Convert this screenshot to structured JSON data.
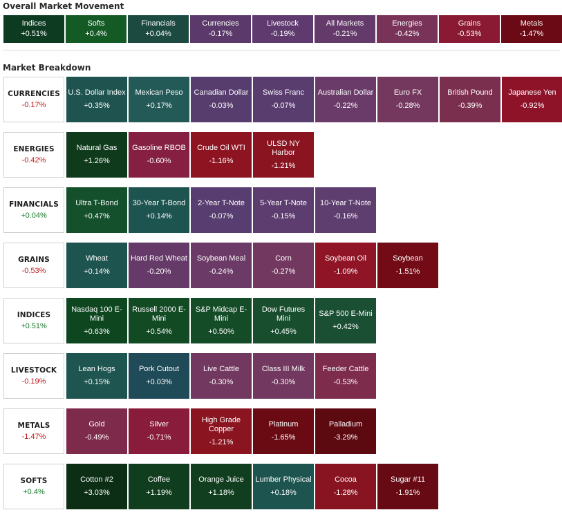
{
  "overall": {
    "title": "Overall Market Movement",
    "tiles": [
      {
        "name": "Indices",
        "change": "+0.51%",
        "color": "#0d3b22"
      },
      {
        "name": "Softs",
        "change": "+0.4%",
        "color": "#145a24"
      },
      {
        "name": "Financials",
        "change": "+0.04%",
        "color": "#1c4a40"
      },
      {
        "name": "Currencies",
        "change": "-0.17%",
        "color": "#5b3a6b"
      },
      {
        "name": "Livestock",
        "change": "-0.19%",
        "color": "#5e3a6e"
      },
      {
        "name": "All Markets",
        "change": "-0.21%",
        "color": "#633a6a"
      },
      {
        "name": "Energies",
        "change": "-0.42%",
        "color": "#7a3358"
      },
      {
        "name": "Grains",
        "change": "-0.53%",
        "color": "#8a1a33"
      },
      {
        "name": "Metals",
        "change": "-1.47%",
        "color": "#6b0a14"
      }
    ]
  },
  "breakdown": {
    "title": "Market Breakdown",
    "rows": [
      {
        "category": "CURRENCIES",
        "change": "-0.17%",
        "sign": "neg",
        "tiles": [
          {
            "name": "U.S. Dollar Index",
            "change": "+0.35%",
            "color": "#1e5350"
          },
          {
            "name": "Mexican Peso",
            "change": "+0.17%",
            "color": "#235a58"
          },
          {
            "name": "Canadian Dollar",
            "change": "-0.03%",
            "color": "#573c6e"
          },
          {
            "name": "Swiss Franc",
            "change": "-0.07%",
            "color": "#5a3d6f"
          },
          {
            "name": "Australian Dollar",
            "change": "-0.22%",
            "color": "#6a3a68"
          },
          {
            "name": "Euro FX",
            "change": "-0.28%",
            "color": "#74385f"
          },
          {
            "name": "British Pound",
            "change": "-0.39%",
            "color": "#7b2f4e"
          },
          {
            "name": "Japanese Yen",
            "change": "-0.92%",
            "color": "#8e1329"
          }
        ]
      },
      {
        "category": "ENERGIES",
        "change": "-0.42%",
        "sign": "neg",
        "tiles": [
          {
            "name": "Natural Gas",
            "change": "+1.26%",
            "color": "#103a1c"
          },
          {
            "name": "Gasoline RBOB",
            "change": "-0.60%",
            "color": "#852043"
          },
          {
            "name": "Crude Oil WTI",
            "change": "-1.16%",
            "color": "#8e1422"
          },
          {
            "name": "ULSD NY Harbor",
            "change": "-1.21%",
            "color": "#8a1420"
          }
        ]
      },
      {
        "category": "FINANCIALS",
        "change": "+0.04%",
        "sign": "pos",
        "tiles": [
          {
            "name": "Ultra T-Bond",
            "change": "+0.47%",
            "color": "#15502c"
          },
          {
            "name": "30-Year T-Bond",
            "change": "+0.14%",
            "color": "#1e5450"
          },
          {
            "name": "2-Year T-Note",
            "change": "-0.07%",
            "color": "#583d70"
          },
          {
            "name": "5-Year T-Note",
            "change": "-0.15%",
            "color": "#5d3d70"
          },
          {
            "name": "10-Year T-Note",
            "change": "-0.16%",
            "color": "#5e3d6f"
          }
        ]
      },
      {
        "category": "GRAINS",
        "change": "-0.53%",
        "sign": "neg",
        "tiles": [
          {
            "name": "Wheat",
            "change": "+0.14%",
            "color": "#1e5450"
          },
          {
            "name": "Hard Red Wheat",
            "change": "-0.20%",
            "color": "#653a68"
          },
          {
            "name": "Soybean Meal",
            "change": "-0.24%",
            "color": "#6b3a66"
          },
          {
            "name": "Corn",
            "change": "-0.27%",
            "color": "#723860"
          },
          {
            "name": "Soybean Oil",
            "change": "-1.09%",
            "color": "#8f1425"
          },
          {
            "name": "Soybean",
            "change": "-1.51%",
            "color": "#720b16"
          }
        ]
      },
      {
        "category": "INDICES",
        "change": "+0.51%",
        "sign": "pos",
        "tiles": [
          {
            "name": "Nasdaq 100 E-Mini",
            "change": "+0.63%",
            "color": "#0e4620"
          },
          {
            "name": "Russell 2000 E-Mini",
            "change": "+0.54%",
            "color": "#124a24"
          },
          {
            "name": "S&P Midcap E-Mini",
            "change": "+0.50%",
            "color": "#154c28"
          },
          {
            "name": "Dow Futures Mini",
            "change": "+0.45%",
            "color": "#184e2e"
          },
          {
            "name": "S&P 500 E-Mini",
            "change": "+0.42%",
            "color": "#1a4f34"
          }
        ]
      },
      {
        "category": "LIVESTOCK",
        "change": "-0.19%",
        "sign": "neg",
        "tiles": [
          {
            "name": "Lean Hogs",
            "change": "+0.15%",
            "color": "#1f5550"
          },
          {
            "name": "Pork Cutout",
            "change": "+0.03%",
            "color": "#1f4a58"
          },
          {
            "name": "Live Cattle",
            "change": "-0.30%",
            "color": "#72385f"
          },
          {
            "name": "Class III Milk",
            "change": "-0.30%",
            "color": "#72385f"
          },
          {
            "name": "Feeder Cattle",
            "change": "-0.53%",
            "color": "#7d2c4c"
          }
        ]
      },
      {
        "category": "METALS",
        "change": "-1.47%",
        "sign": "neg",
        "tiles": [
          {
            "name": "Gold",
            "change": "-0.49%",
            "color": "#7e2a4a"
          },
          {
            "name": "Silver",
            "change": "-0.71%",
            "color": "#891c3a"
          },
          {
            "name": "High Grade Copper",
            "change": "-1.21%",
            "color": "#8a1420"
          },
          {
            "name": "Platinum",
            "change": "-1.65%",
            "color": "#6a0b14"
          },
          {
            "name": "Palladium",
            "change": "-3.29%",
            "color": "#5c0910"
          }
        ]
      },
      {
        "category": "SOFTS",
        "change": "+0.4%",
        "sign": "pos",
        "tiles": [
          {
            "name": "Cotton #2",
            "change": "+3.03%",
            "color": "#0b2e15"
          },
          {
            "name": "Coffee",
            "change": "+1.19%",
            "color": "#0f3d1e"
          },
          {
            "name": "Orange Juice",
            "change": "+1.18%",
            "color": "#103e1f"
          },
          {
            "name": "Lumber Physical",
            "change": "+0.18%",
            "color": "#1e5450"
          },
          {
            "name": "Cocoa",
            "change": "-1.28%",
            "color": "#881421"
          },
          {
            "name": "Sugar #11",
            "change": "-1.91%",
            "color": "#680a14"
          }
        ]
      }
    ]
  }
}
